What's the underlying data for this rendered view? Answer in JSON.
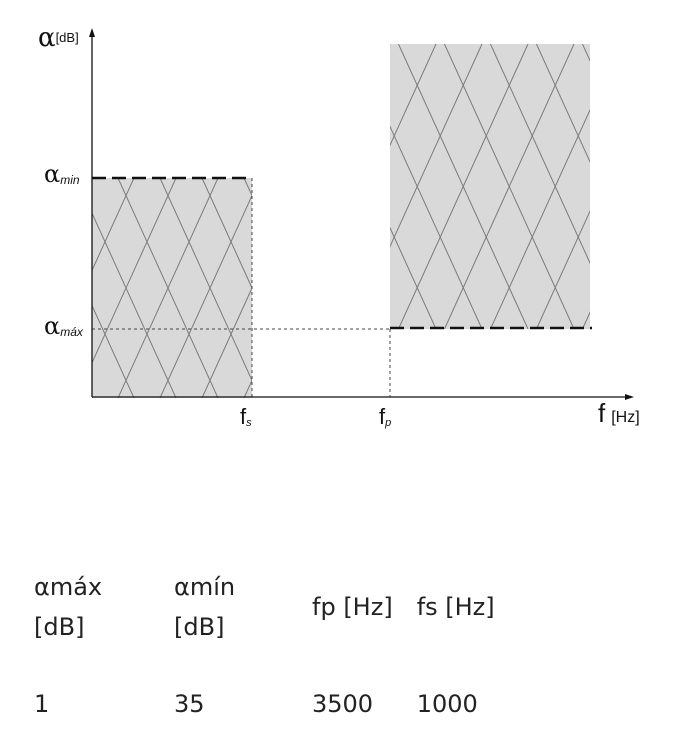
{
  "diagram": {
    "y_axis_symbol": "α",
    "y_axis_unit": "[dB]",
    "x_axis_symbol": "f",
    "x_axis_unit": "[Hz]",
    "alpha_min": {
      "symbol": "α",
      "subscript": "min"
    },
    "alpha_max": {
      "symbol": "α",
      "subscript": "máx"
    },
    "f_s": {
      "symbol": "f",
      "subscript": "s"
    },
    "f_p": {
      "symbol": "f",
      "subscript": "p"
    },
    "colors": {
      "region_fill": "#d9d9d9",
      "hatch": "#7a7a7a",
      "axis": "#111111",
      "guide": "#444444"
    }
  },
  "table": {
    "headers": [
      "αmáx [dB]",
      "αmín [dB]",
      "fp [Hz]",
      "fs [Hz]"
    ],
    "rows": [
      [
        "1",
        "35",
        "3500",
        "1000"
      ]
    ]
  }
}
